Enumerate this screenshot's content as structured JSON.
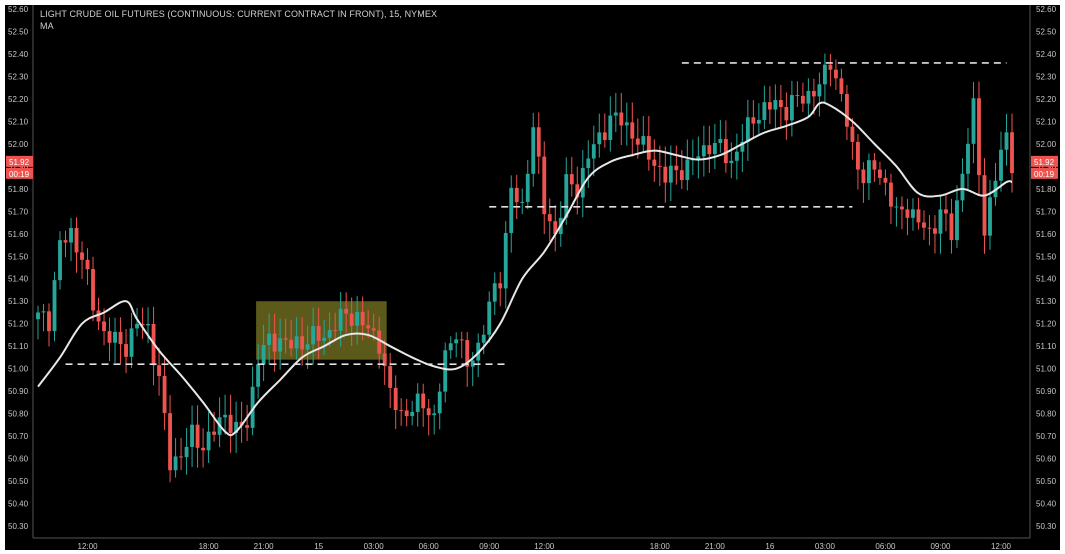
{
  "header": {
    "title": "LIGHT CRUDE OIL FUTURES (CONTINUOUS: CURRENT CONTRACT IN FRONT), 15, NYMEX",
    "indicator": "MA"
  },
  "colors": {
    "background": "#000000",
    "up": "#26a69a",
    "down": "#ef5350",
    "ma": "#e8e8e8",
    "level_line": "#e0e0e0",
    "zone_fill": "#6b6a1e",
    "badge": "#ef5350"
  },
  "price_badges": {
    "last_price": "51.92",
    "countdown": "00:19"
  },
  "chart_data": {
    "type": "candlestick",
    "title": "LIGHT CRUDE OIL FUTURES (CONTINUOUS: CURRENT CONTRACT IN FRONT), 15, NYMEX",
    "ylim": [
      50.25,
      52.63
    ],
    "y_ticks": [
      "52.60",
      "52.50",
      "52.40",
      "52.30",
      "52.20",
      "52.10",
      "52.00",
      "51.90",
      "51.80",
      "51.70",
      "51.60",
      "51.50",
      "51.40",
      "51.30",
      "51.20",
      "51.10",
      "51.00",
      "50.90",
      "50.80",
      "50.70",
      "50.60",
      "50.50",
      "50.40",
      "50.30"
    ],
    "x_ticks": [
      "12:00",
      "18:00",
      "21:00",
      "15",
      "03:00",
      "06:00",
      "09:00",
      "12:00",
      "18:00",
      "21:00",
      "16",
      "03:00",
      "06:00",
      "09:00",
      "12:00"
    ],
    "x_tick_index": [
      9,
      31,
      41,
      51,
      61,
      71,
      82,
      92,
      113,
      123,
      133,
      143,
      154,
      164,
      175
    ],
    "candle_count": 178,
    "anchors": [
      [
        0,
        51.23
      ],
      [
        2,
        51.22
      ],
      [
        4,
        51.55
      ],
      [
        6,
        51.6
      ],
      [
        8,
        51.5
      ],
      [
        10,
        51.28
      ],
      [
        12,
        51.16
      ],
      [
        14,
        51.12
      ],
      [
        16,
        51.1
      ],
      [
        18,
        51.2
      ],
      [
        20,
        51.18
      ],
      [
        22,
        50.95
      ],
      [
        24,
        50.58
      ],
      [
        26,
        50.62
      ],
      [
        28,
        50.7
      ],
      [
        30,
        50.66
      ],
      [
        32,
        50.72
      ],
      [
        34,
        50.8
      ],
      [
        36,
        50.72
      ],
      [
        38,
        50.76
      ],
      [
        40,
        51.05
      ],
      [
        42,
        51.12
      ],
      [
        44,
        51.13
      ],
      [
        46,
        51.1
      ],
      [
        48,
        51.12
      ],
      [
        50,
        51.14
      ],
      [
        52,
        51.14
      ],
      [
        54,
        51.2
      ],
      [
        56,
        51.24
      ],
      [
        58,
        51.23
      ],
      [
        60,
        51.17
      ],
      [
        62,
        51.12
      ],
      [
        64,
        50.88
      ],
      [
        66,
        50.8
      ],
      [
        68,
        50.82
      ],
      [
        70,
        50.85
      ],
      [
        72,
        50.78
      ],
      [
        74,
        51.05
      ],
      [
        76,
        51.18
      ],
      [
        78,
        51.0
      ],
      [
        80,
        51.1
      ],
      [
        82,
        51.28
      ],
      [
        84,
        51.4
      ],
      [
        86,
        51.8
      ],
      [
        88,
        51.7
      ],
      [
        90,
        52.1
      ],
      [
        92,
        51.7
      ],
      [
        94,
        51.6
      ],
      [
        96,
        51.82
      ],
      [
        98,
        51.8
      ],
      [
        100,
        51.95
      ],
      [
        102,
        52.02
      ],
      [
        104,
        52.12
      ],
      [
        106,
        52.1
      ],
      [
        108,
        52.05
      ],
      [
        110,
        51.98
      ],
      [
        112,
        51.92
      ],
      [
        114,
        51.85
      ],
      [
        116,
        51.88
      ],
      [
        118,
        51.9
      ],
      [
        120,
        51.95
      ],
      [
        122,
        52.0
      ],
      [
        124,
        51.98
      ],
      [
        126,
        51.92
      ],
      [
        128,
        52.02
      ],
      [
        130,
        52.12
      ],
      [
        132,
        52.15
      ],
      [
        134,
        52.18
      ],
      [
        136,
        52.15
      ],
      [
        138,
        52.2
      ],
      [
        140,
        52.22
      ],
      [
        142,
        52.25
      ],
      [
        144,
        52.38
      ],
      [
        146,
        52.2
      ],
      [
        148,
        51.98
      ],
      [
        150,
        51.85
      ],
      [
        152,
        51.9
      ],
      [
        154,
        51.82
      ],
      [
        156,
        51.68
      ],
      [
        158,
        51.72
      ],
      [
        160,
        51.65
      ],
      [
        162,
        51.6
      ],
      [
        164,
        51.7
      ],
      [
        166,
        51.6
      ],
      [
        168,
        51.88
      ],
      [
        170,
        52.15
      ],
      [
        172,
        51.62
      ],
      [
        174,
        51.85
      ],
      [
        176,
        52.05
      ],
      [
        177,
        51.92
      ]
    ],
    "moving_average": [
      [
        0,
        50.92
      ],
      [
        4,
        51.05
      ],
      [
        8,
        51.2
      ],
      [
        12,
        51.25
      ],
      [
        16,
        51.3
      ],
      [
        18,
        51.22
      ],
      [
        22,
        51.08
      ],
      [
        26,
        50.97
      ],
      [
        30,
        50.85
      ],
      [
        34,
        50.72
      ],
      [
        36,
        50.72
      ],
      [
        40,
        50.85
      ],
      [
        44,
        50.95
      ],
      [
        48,
        51.05
      ],
      [
        52,
        51.1
      ],
      [
        56,
        51.15
      ],
      [
        60,
        51.15
      ],
      [
        64,
        51.1
      ],
      [
        68,
        51.05
      ],
      [
        72,
        51.01
      ],
      [
        76,
        51.0
      ],
      [
        80,
        51.07
      ],
      [
        84,
        51.2
      ],
      [
        88,
        51.4
      ],
      [
        92,
        51.52
      ],
      [
        96,
        51.68
      ],
      [
        100,
        51.85
      ],
      [
        104,
        51.92
      ],
      [
        108,
        51.95
      ],
      [
        112,
        51.97
      ],
      [
        116,
        51.95
      ],
      [
        120,
        51.93
      ],
      [
        124,
        51.95
      ],
      [
        128,
        52.0
      ],
      [
        132,
        52.05
      ],
      [
        136,
        52.08
      ],
      [
        140,
        52.12
      ],
      [
        142,
        52.18
      ],
      [
        144,
        52.17
      ],
      [
        148,
        52.1
      ],
      [
        152,
        52.0
      ],
      [
        156,
        51.9
      ],
      [
        160,
        51.78
      ],
      [
        164,
        51.77
      ],
      [
        168,
        51.8
      ],
      [
        172,
        51.77
      ],
      [
        176,
        51.83
      ],
      [
        177,
        51.83
      ]
    ],
    "levels": [
      {
        "price": 51.02,
        "from_index": 5,
        "to_index": 85
      },
      {
        "price": 51.72,
        "from_index": 82,
        "to_index": 148
      },
      {
        "price": 52.36,
        "from_index": 117,
        "to_index": 176
      }
    ],
    "zone": {
      "from_index": 40,
      "to_index": 63,
      "price_low": 51.04,
      "price_high": 51.3
    },
    "last_price": 51.92,
    "grid": false
  }
}
